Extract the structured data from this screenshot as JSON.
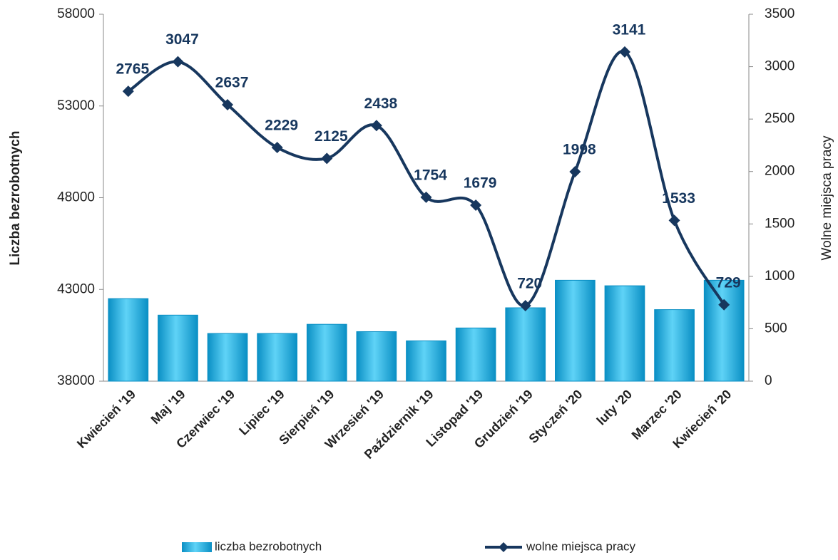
{
  "chart_data": {
    "type": "bar-line",
    "categories": [
      "Kwiecień '19",
      "Maj '19",
      "Czerwiec '19",
      "Lipiec '19",
      "Sierpień '19",
      "Wrzesień '19",
      "Październik '19",
      "Listopad '19",
      "Grudzień '19",
      "Styczeń '20",
      "luty '20",
      "Marzec '20",
      "Kwiecień '20"
    ],
    "series": [
      {
        "name": "liczba bezrobotnych",
        "type": "bar",
        "color": "#1ab0e6",
        "values": [
          42500,
          41600,
          40600,
          40600,
          41100,
          40700,
          40200,
          40900,
          42000,
          43500,
          43200,
          41900,
          43500
        ]
      },
      {
        "name": "wolne miejsca pracy",
        "type": "line",
        "axis": "y2",
        "color": "#17375e",
        "values": [
          2765,
          3047,
          2637,
          2229,
          2125,
          2438,
          1754,
          1679,
          720,
          1998,
          3141,
          1533,
          729
        ]
      }
    ],
    "ylabel": "Liczba bezrobotnych",
    "y2label": "Wolne  miejsca  pracy",
    "ylim": [
      38000,
      58000
    ],
    "yticks": [
      38000,
      43000,
      48000,
      53000,
      58000
    ],
    "y2lim": [
      0,
      3500
    ],
    "y2ticks": [
      0,
      500,
      1000,
      1500,
      2000,
      2500,
      3000,
      3500
    ],
    "legend": "bottom"
  }
}
